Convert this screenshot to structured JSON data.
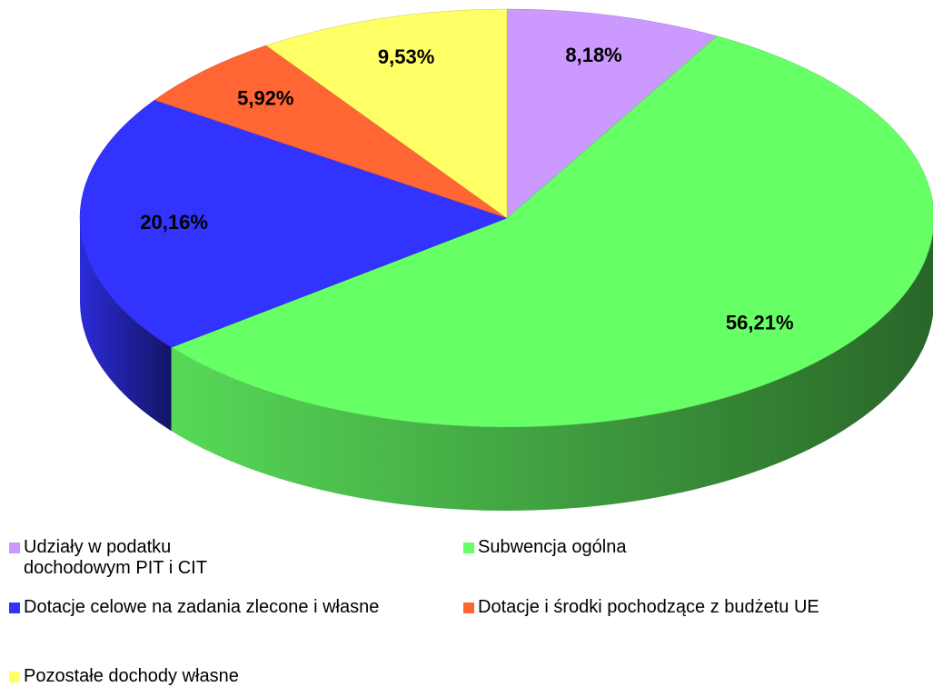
{
  "chart_data": {
    "type": "pie",
    "categories": [
      "Udziały w podatku dochodowym PIT i CIT",
      "Subwencja ogólna",
      "Dotacje celowe na zadania zlecone i własne",
      "Dotacje i środki pochodzące z budżetu UE",
      "Pozostałe dochody własne"
    ],
    "values": [
      8.18,
      56.21,
      20.16,
      5.92,
      9.53
    ],
    "value_labels": [
      "8,18%",
      "56,21%",
      "20,16%",
      "5,92%",
      "9,53%"
    ],
    "colors": [
      "#cc99ff",
      "#66ff66",
      "#3333ff",
      "#ff6633",
      "#ffff66"
    ],
    "legend": "bottom"
  }
}
